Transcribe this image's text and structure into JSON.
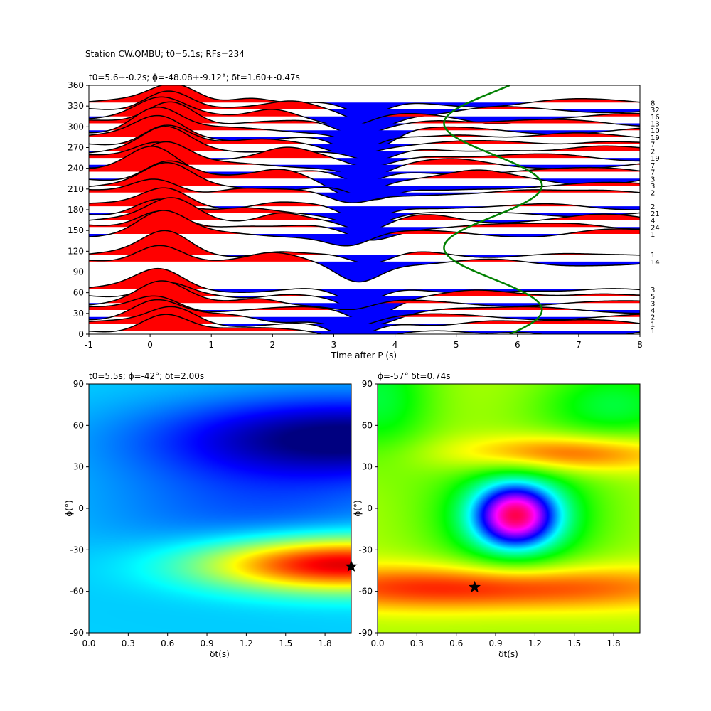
{
  "suptitle": "Station CW.QMBU; t0=5.1s; RFs=234",
  "chart_data": [
    {
      "type": "line",
      "panel": "receiver-function-wiggles",
      "title": "t0=5.6+-0.2s; ϕ=-48.08+-9.12°; δt=1.60+-0.47s",
      "xlabel": "Time after P (s)",
      "ylabel": "",
      "xlim": [
        -1,
        8
      ],
      "ylim": [
        0,
        360
      ],
      "xticks": [
        -1,
        0,
        1,
        2,
        3,
        4,
        5,
        6,
        7,
        8
      ],
      "yticks": [
        0,
        30,
        60,
        90,
        120,
        150,
        180,
        210,
        240,
        270,
        300,
        330,
        360
      ],
      "fill_positive": "#ff0000",
      "fill_negative": "#0000ff",
      "trace_color": "#000000",
      "traces": [
        {
          "baz": 5,
          "count": "1"
        },
        {
          "baz": 15,
          "count": "1"
        },
        {
          "baz": 25,
          "count": "2"
        },
        {
          "baz": 35,
          "count": "4"
        },
        {
          "baz": 45,
          "count": "3"
        },
        {
          "baz": 55,
          "count": "5"
        },
        {
          "baz": 65,
          "count": "3"
        },
        {
          "baz": 105,
          "count": "14"
        },
        {
          "baz": 115,
          "count": "1"
        },
        {
          "baz": 145,
          "count": "1"
        },
        {
          "baz": 155,
          "count": "24"
        },
        {
          "baz": 165,
          "count": "4"
        },
        {
          "baz": 175,
          "count": "21"
        },
        {
          "baz": 185,
          "count": "2"
        },
        {
          "baz": 205,
          "count": "2"
        },
        {
          "baz": 215,
          "count": "3"
        },
        {
          "baz": 225,
          "count": "3"
        },
        {
          "baz": 235,
          "count": "7"
        },
        {
          "baz": 245,
          "count": "7"
        },
        {
          "baz": 255,
          "count": "19"
        },
        {
          "baz": 265,
          "count": "2"
        },
        {
          "baz": 275,
          "count": "7"
        },
        {
          "baz": 285,
          "count": "19"
        },
        {
          "baz": 295,
          "count": "10"
        },
        {
          "baz": 305,
          "count": "13"
        },
        {
          "baz": 315,
          "count": "16"
        },
        {
          "baz": 325,
          "count": "32"
        },
        {
          "baz": 335,
          "count": "8"
        }
      ],
      "arrival_curve": {
        "color": "#008000",
        "t_mean": 5.6,
        "amplitude": 0.8,
        "phase_deg": 35,
        "period_deg": 180
      }
    },
    {
      "type": "heatmap",
      "panel": "grid-search-left",
      "title": "t0=5.5s; ϕ=-42°; δt=2.00s",
      "xlabel": "δt(s)",
      "ylabel": "ϕ(°)",
      "xlim": [
        0,
        2
      ],
      "ylim": [
        -90,
        90
      ],
      "xticks": [
        "0.0",
        "0.3",
        "0.6",
        "0.9",
        "1.2",
        "1.5",
        "1.8"
      ],
      "yticks": [
        -90,
        -60,
        -30,
        0,
        30,
        60,
        90
      ],
      "colormap": "jet",
      "best": {
        "dt": 2.0,
        "phi": -42
      },
      "marker_color": "#000000"
    },
    {
      "type": "heatmap",
      "panel": "grid-search-right",
      "title": "ϕ=-57° δt=0.74s",
      "xlabel": "δt(s)",
      "ylabel": "ϕ(°)",
      "xlim": [
        0,
        2
      ],
      "ylim": [
        -90,
        90
      ],
      "xticks": [
        "0.0",
        "0.3",
        "0.6",
        "0.9",
        "1.2",
        "1.5",
        "1.8"
      ],
      "yticks": [
        -90,
        -60,
        -30,
        0,
        30,
        60,
        90
      ],
      "colormap": "hsv",
      "best": {
        "dt": 0.74,
        "phi": -57
      },
      "marker_color": "#000000"
    }
  ]
}
